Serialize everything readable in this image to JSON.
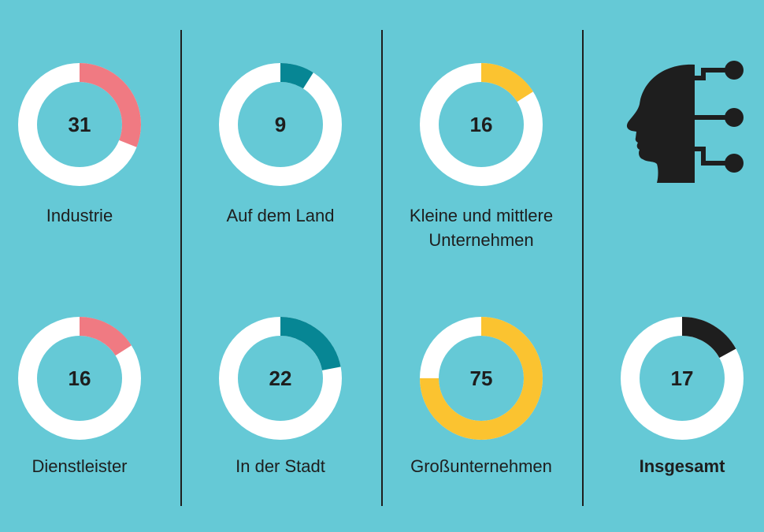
{
  "chart_data": {
    "type": "donut-grid",
    "unit": "%",
    "items": [
      {
        "label": "Industrie",
        "value": 31,
        "color": "#f07a82",
        "bold": false
      },
      {
        "label": "Auf dem Land",
        "value": 9,
        "color": "#078694",
        "bold": false
      },
      {
        "label": "Kleine und mittlere\nUnternehmen",
        "value": 16,
        "color": "#fbc330",
        "bold": false
      },
      {
        "label": "Dienstleister",
        "value": 16,
        "color": "#f07a82",
        "bold": false
      },
      {
        "label": "In der Stadt",
        "value": 22,
        "color": "#078694",
        "bold": false
      },
      {
        "label": "Großunternehmen",
        "value": 75,
        "color": "#fbc330",
        "bold": false
      },
      {
        "label": "Insgesamt",
        "value": 17,
        "color": "#1e1e1e",
        "bold": true
      }
    ]
  },
  "colors": {
    "background": "#65c9d6",
    "track": "#ffffff",
    "text": "#1e1e1e",
    "divider": "#1e1e1e"
  },
  "icon": {
    "name": "ai-head-circuit-icon"
  }
}
